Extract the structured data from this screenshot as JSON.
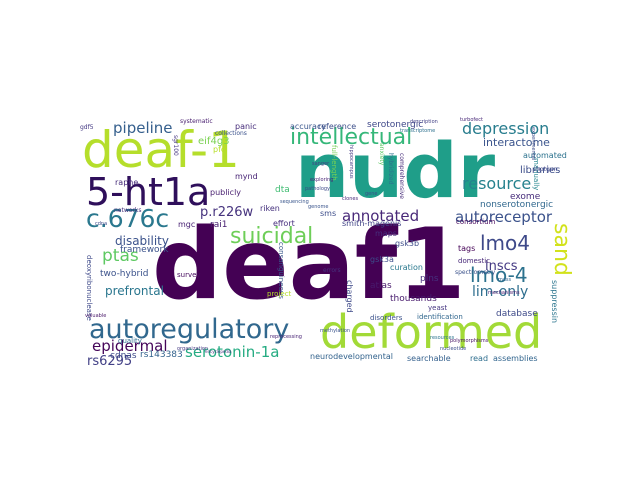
{
  "words": [
    {
      "id": "deaf1",
      "text": "deaf1",
      "color": "#440154"
    },
    {
      "id": "nudr",
      "text": "nudr",
      "color": "#1f9e89"
    },
    {
      "id": "deaf-1",
      "text": "deaf-1",
      "color": "#b5de2b"
    },
    {
      "id": "deformed",
      "text": "deformed",
      "color": "#a2da37"
    },
    {
      "id": "5-ht1a",
      "text": "5-ht1a",
      "color": "#2f0f5b"
    },
    {
      "id": "autoregulatory",
      "text": "autoregulatory",
      "color": "#31688e"
    },
    {
      "id": "c676c",
      "text": "c.676c",
      "color": "#2a788e"
    },
    {
      "id": "intellectual",
      "text": "intellectual",
      "color": "#35b779"
    },
    {
      "id": "suicidal",
      "text": "suicidal",
      "color": "#6ece58"
    },
    {
      "id": "lmo4",
      "text": "lmo4",
      "color": "#3e4989"
    },
    {
      "id": "lmo-4",
      "text": "lmo-4",
      "color": "#2c728e"
    },
    {
      "id": "sand",
      "text": "sand",
      "color": "#d2e21b"
    },
    {
      "id": "depression",
      "text": "depression",
      "color": "#287d8e"
    },
    {
      "id": "pipeline",
      "text": "pipeline",
      "color": "#355f8d"
    },
    {
      "id": "resource",
      "text": "resource",
      "color": "#26828e"
    },
    {
      "id": "autoreceptor",
      "text": "autoreceptor",
      "color": "#3b528b"
    },
    {
      "id": "annotated",
      "text": "annotated",
      "color": "#482878"
    },
    {
      "id": "epidermal",
      "text": "epidermal",
      "color": "#450559"
    },
    {
      "id": "serotonin-1a",
      "text": "serotonin-1a",
      "color": "#25ac82"
    },
    {
      "id": "ptas",
      "text": "ptas",
      "color": "#5ec962"
    },
    {
      "id": "lnscs",
      "text": "lnscs",
      "color": "#443983"
    },
    {
      "id": "lim-only",
      "text": "lim-only",
      "color": "#2e6e8e"
    },
    {
      "id": "rs6295",
      "text": "rs6295",
      "color": "#424086"
    },
    {
      "id": "p-r226w",
      "text": "p.r226w",
      "color": "#46337e"
    },
    {
      "id": "interactome",
      "text": "interactome",
      "color": "#3a548c"
    },
    {
      "id": "disability",
      "text": "disability",
      "color": "#3b528b"
    },
    {
      "id": "prefrontal",
      "text": "prefrontal",
      "color": "#2a768e"
    },
    {
      "id": "eif4g3",
      "text": "eif4g3",
      "color": "#7ad151"
    },
    {
      "id": "serotonergic",
      "text": "serotonergic",
      "color": "#3f4889"
    },
    {
      "id": "libraries",
      "text": "libraries",
      "color": "#3d4e8a"
    },
    {
      "id": "nonserotonergic",
      "text": "nonserotonergic",
      "color": "#31688e"
    },
    {
      "id": "exome",
      "text": "exome",
      "color": "#472d7b"
    },
    {
      "id": "automated",
      "text": "automated",
      "color": "#2c728e"
    },
    {
      "id": "cdnas",
      "text": "cdnas",
      "color": "#3e4a89"
    },
    {
      "id": "rs143383",
      "text": "rs143383",
      "color": "#33638d"
    },
    {
      "id": "atlas",
      "text": "atlas",
      "color": "#481a6c"
    },
    {
      "id": "plns",
      "text": "plns",
      "color": "#46307e"
    },
    {
      "id": "thousands",
      "text": "thousands",
      "color": "#481b6d"
    },
    {
      "id": "database",
      "text": "database",
      "color": "#3e4a89"
    },
    {
      "id": "suppressin",
      "text": "suppressin",
      "color": "#2b758e"
    },
    {
      "id": "two-hybrid",
      "text": "two-hybrid",
      "color": "#3b528b"
    },
    {
      "id": "framework",
      "text": "framework",
      "color": "#3b528b"
    },
    {
      "id": "panic",
      "text": "panic",
      "color": "#472d7b"
    },
    {
      "id": "raphe",
      "text": "raphe",
      "color": "#472c7a"
    },
    {
      "id": "mgc",
      "text": "mgc",
      "color": "#482173"
    },
    {
      "id": "publicly",
      "text": "publicly",
      "color": "#481f70"
    },
    {
      "id": "riken",
      "text": "riken",
      "color": "#46327e"
    },
    {
      "id": "rai1",
      "text": "rai1",
      "color": "#482071"
    },
    {
      "id": "effort",
      "text": "effort",
      "color": "#472f7d"
    },
    {
      "id": "mynd",
      "text": "mynd",
      "color": "#482475"
    },
    {
      "id": "pfc",
      "text": "pfc",
      "color": "#b8de29"
    },
    {
      "id": "dta",
      "text": "dta",
      "color": "#40bd72"
    },
    {
      "id": "maps",
      "text": "maps",
      "color": "#472e7c"
    },
    {
      "id": "gsk3b",
      "text": "gsk3b",
      "color": "#3e4c8a"
    },
    {
      "id": "gsk3a",
      "text": "gsk3a",
      "color": "#3d4d8a"
    },
    {
      "id": "tags",
      "text": "tags",
      "color": "#440256"
    },
    {
      "id": "smith-magenis",
      "text": "smith-magenis",
      "color": "#414487"
    },
    {
      "id": "consortium",
      "text": "consortium",
      "color": "#46085c"
    },
    {
      "id": "curation",
      "text": "curation",
      "color": "#2a788e"
    },
    {
      "id": "charged",
      "text": "charged",
      "color": "#3e4a89"
    },
    {
      "id": "accuracy",
      "text": "accuracy",
      "color": "#39568c"
    },
    {
      "id": "reference",
      "text": "reference",
      "color": "#3c4f8a"
    },
    {
      "id": "neurodevelopmental",
      "text": "neurodevelopmental",
      "color": "#33638d"
    },
    {
      "id": "searchable",
      "text": "searchable",
      "color": "#34608d"
    },
    {
      "id": "read",
      "text": "read",
      "color": "#2e6e8e"
    },
    {
      "id": "assemblies",
      "text": "assemblies",
      "color": "#32658e"
    },
    {
      "id": "deoxyribonuclease",
      "text": "deoxyribonuclease",
      "color": "#3e4989"
    },
    {
      "id": "consanguineous",
      "text": "consanguineous",
      "color": "#38588c"
    },
    {
      "id": "survey",
      "text": "survey",
      "color": "#460b5e"
    },
    {
      "id": "quality",
      "text": "quality",
      "color": "#2f6c8e"
    },
    {
      "id": "identification",
      "text": "identification",
      "color": "#31678e"
    },
    {
      "id": "disorders",
      "text": "disorders",
      "color": "#3b528b"
    },
    {
      "id": "yeast",
      "text": "yeast",
      "color": "#453581"
    },
    {
      "id": "domestic",
      "text": "domestic",
      "color": "#482979"
    },
    {
      "id": "manually",
      "text": "manually",
      "color": "#24868e"
    },
    {
      "id": "sms",
      "text": "sms",
      "color": "#3d4d8a"
    },
    {
      "id": "project",
      "text": "project",
      "color": "#b5de2b"
    },
    {
      "id": "full-length",
      "text": "full-length",
      "color": "#75d054"
    },
    {
      "id": "anxiety",
      "text": "anxiety",
      "color": "#5cc863"
    },
    {
      "id": "networks",
      "text": "networks",
      "color": "#472f7d"
    },
    {
      "id": "errors",
      "text": "errors",
      "color": "#46327e"
    },
    {
      "id": "spectrometry",
      "text": "spectrometry",
      "color": "#3b528b"
    },
    {
      "id": "shotgun",
      "text": "shotgun",
      "color": "#3f4788"
    },
    {
      "id": "systematic",
      "text": "systematic",
      "color": "#481d6f"
    },
    {
      "id": "collections",
      "text": "collections",
      "color": "#3b528b"
    },
    {
      "id": "description",
      "text": "description",
      "color": "#424086"
    },
    {
      "id": "turbofect",
      "text": "turbofect",
      "color": "#482878"
    },
    {
      "id": "hippocampus",
      "text": "hippocampus",
      "color": "#443a83"
    },
    {
      "id": "cdna",
      "text": "cdna",
      "color": "#3e4a89"
    },
    {
      "id": "gdf5",
      "text": "gdf5",
      "color": "#443983"
    },
    {
      "id": "sgr100",
      "text": "sgr100",
      "color": "#453581"
    },
    {
      "id": "comprehensive",
      "text": "comprehensive",
      "color": "#472c7a"
    },
    {
      "id": "hybridized",
      "text": "hybridized",
      "color": "#2d708e"
    },
    {
      "id": "sequencing",
      "text": "sequencing",
      "color": "#39568c"
    },
    {
      "id": "pathology",
      "text": "pathology",
      "color": "#3e4989"
    },
    {
      "id": "exploring",
      "text": "exploring",
      "color": "#482576"
    },
    {
      "id": "genome",
      "text": "genome",
      "color": "#3a548c"
    },
    {
      "id": "clones",
      "text": "clones",
      "color": "#472a7a"
    },
    {
      "id": "sanger",
      "text": "sanger",
      "color": "#433e85"
    },
    {
      "id": "gene",
      "text": "gene",
      "color": "#3c4f8a"
    },
    {
      "id": "transcriptome",
      "text": "transcriptome",
      "color": "#2d708e"
    },
    {
      "id": "experimental",
      "text": "experimental",
      "color": "#3d4d8a"
    },
    {
      "id": "mass",
      "text": "mass",
      "color": "#31668e"
    },
    {
      "id": "valuable",
      "text": "valuable",
      "color": "#481769"
    },
    {
      "id": "organization",
      "text": "organization",
      "color": "#453882"
    },
    {
      "id": "encyclopedia",
      "text": "encyclopedia",
      "color": "#46327e"
    },
    {
      "id": "nucleotide",
      "text": "nucleotide",
      "color": "#3c508b"
    },
    {
      "id": "resources",
      "text": "resources",
      "color": "#2b748e"
    },
    {
      "id": "mechanisms",
      "text": "mechanisms",
      "color": "#481c6e"
    },
    {
      "id": "polymorphisms",
      "text": "polymorphisms",
      "color": "#471365"
    },
    {
      "id": "reprocessing",
      "text": "reprocessing",
      "color": "#482374"
    },
    {
      "id": "lnscs2",
      "text": "methylation",
      "color": "#3a538b"
    }
  ]
}
